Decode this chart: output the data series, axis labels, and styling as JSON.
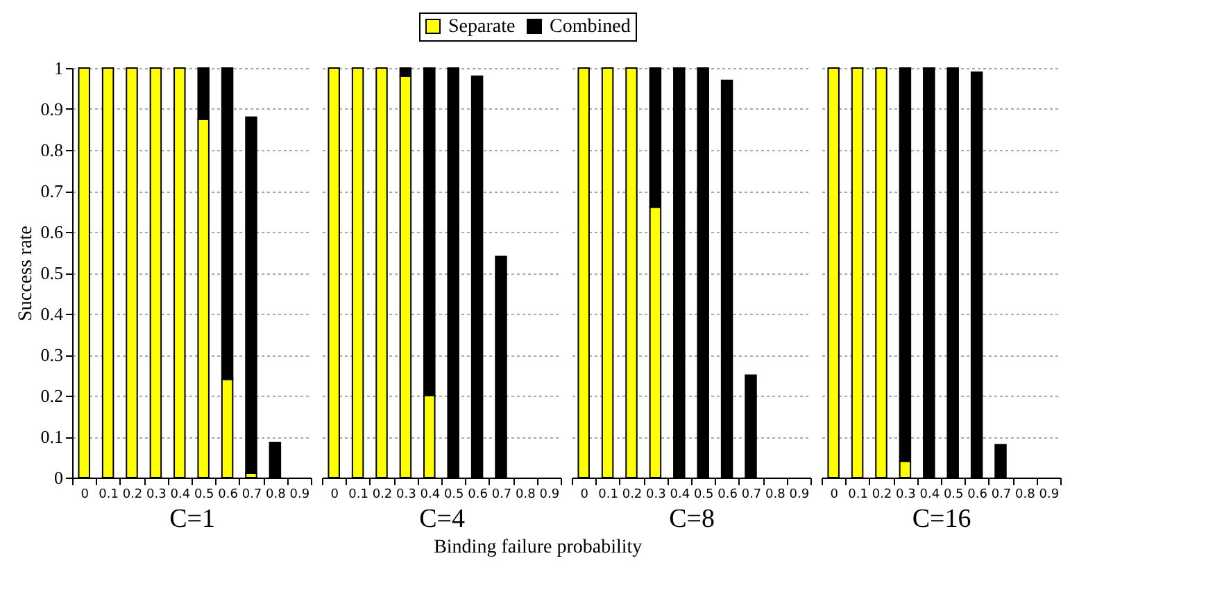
{
  "chart_data": [
    {
      "type": "bar",
      "stacked": true,
      "xlabel": "C=1",
      "ylabel": "Success rate",
      "annotations": [
        "Binding failure probability"
      ],
      "legend": "top",
      "grid": "y",
      "categories": [
        "0",
        "0.1",
        "0.2",
        "0.3",
        "0.4",
        "0.5",
        "0.6",
        "0.7",
        "0.8",
        "0.9"
      ],
      "ylim": [
        0,
        1
      ],
      "yticks": [
        0,
        0.1,
        0.2,
        0.3,
        0.4,
        0.5,
        0.6,
        0.7,
        0.8,
        0.9,
        1
      ],
      "series": [
        {
          "name": "Separate",
          "color": "#ffff00",
          "values": [
            1,
            1,
            1,
            1,
            1,
            0.875,
            0.24,
            0.01,
            null,
            null
          ]
        },
        {
          "name": "Combined",
          "color": "#000000",
          "values": [
            null,
            null,
            null,
            null,
            null,
            0.125,
            0.76,
            0.87,
            0.085,
            null
          ]
        }
      ]
    },
    {
      "type": "bar",
      "stacked": true,
      "xlabel": "C=4",
      "grid": "y",
      "tick_labels": "x",
      "categories": [
        "0",
        "0.1",
        "0.2",
        "0.3",
        "0.4",
        "0.5",
        "0.6",
        "0.7",
        "0.8",
        "0.9"
      ],
      "ylim": [
        0,
        1
      ],
      "yticks": [
        0,
        0.1,
        0.2,
        0.3,
        0.4,
        0.5,
        0.6,
        0.7,
        0.8,
        0.9,
        1
      ],
      "series": [
        {
          "name": "Separate",
          "color": "#ffff00",
          "values": [
            1,
            1,
            1,
            0.98,
            0.2,
            null,
            null,
            null,
            null,
            null
          ]
        },
        {
          "name": "Combined",
          "color": "#000000",
          "values": [
            null,
            null,
            null,
            0.02,
            0.8,
            1,
            0.98,
            0.54,
            null,
            null
          ]
        }
      ]
    },
    {
      "type": "bar",
      "stacked": true,
      "xlabel": "C=8",
      "grid": "y",
      "tick_labels": "x",
      "categories": [
        "0",
        "0.1",
        "0.2",
        "0.3",
        "0.4",
        "0.5",
        "0.6",
        "0.7",
        "0.8",
        "0.9"
      ],
      "ylim": [
        0,
        1
      ],
      "yticks": [
        0,
        0.1,
        0.2,
        0.3,
        0.4,
        0.5,
        0.6,
        0.7,
        0.8,
        0.9,
        1
      ],
      "series": [
        {
          "name": "Separate",
          "color": "#ffff00",
          "values": [
            1,
            1,
            1,
            0.66,
            null,
            null,
            null,
            null,
            null,
            null
          ]
        },
        {
          "name": "Combined",
          "color": "#000000",
          "values": [
            null,
            null,
            null,
            0.34,
            1,
            1,
            0.97,
            0.25,
            null,
            null
          ]
        }
      ]
    },
    {
      "type": "bar",
      "stacked": true,
      "xlabel": "C=16",
      "grid": "y",
      "tick_labels": "x",
      "categories": [
        "0",
        "0.1",
        "0.2",
        "0.3",
        "0.4",
        "0.5",
        "0.6",
        "0.7",
        "0.8",
        "0.9"
      ],
      "ylim": [
        0,
        1
      ],
      "yticks": [
        0,
        0.1,
        0.2,
        0.3,
        0.4,
        0.5,
        0.6,
        0.7,
        0.8,
        0.9,
        1
      ],
      "series": [
        {
          "name": "Separate",
          "color": "#ffff00",
          "values": [
            1,
            1,
            1,
            0.04,
            null,
            null,
            null,
            null,
            null,
            null
          ]
        },
        {
          "name": "Combined",
          "color": "#000000",
          "values": [
            null,
            null,
            null,
            0.96,
            1,
            1,
            0.99,
            0.08,
            null,
            null
          ]
        }
      ]
    }
  ]
}
